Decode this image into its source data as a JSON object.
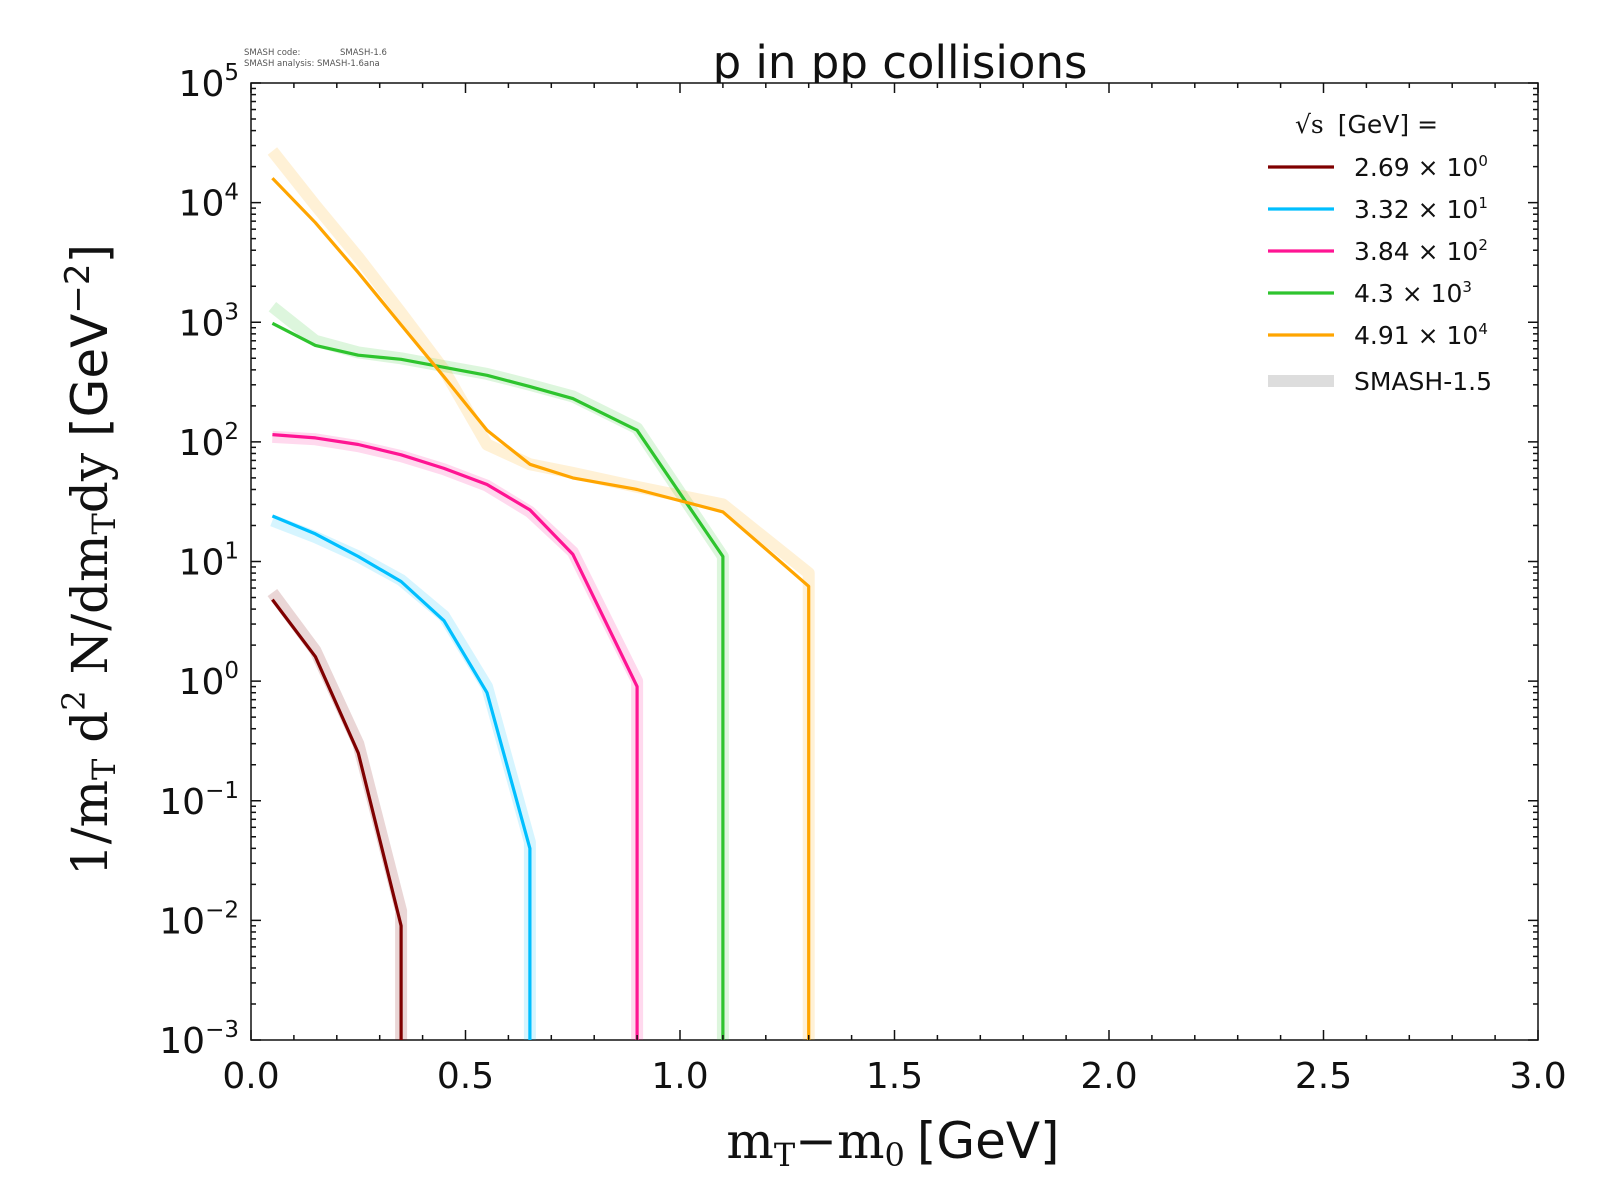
{
  "chart_data": {
    "type": "line",
    "title": "p in pp collisions",
    "smash_info": {
      "code_label": "SMASH code:",
      "code_value": "SMASH-1.6",
      "analysis_label": "SMASH analysis:",
      "analysis_value": "SMASH-1.6ana"
    },
    "xlabel": {
      "main": "m",
      "main_sub": "T",
      "minus": "−m",
      "minus_sub": "0",
      "unit": "[GeV]"
    },
    "ylabel": {
      "part1": "1/m",
      "part1_sub": "T",
      "part2": " d",
      "part2_sup": "2",
      "part3": " N/dm",
      "part3_sub": "T",
      "part4": "dy",
      "unit": "[GeV",
      "unit_sup": "−2",
      "unit_close": "]"
    },
    "xlim": [
      0.0,
      3.0
    ],
    "ylim": [
      0.001,
      100000
    ],
    "yscale": "log",
    "x_ticks": [
      "0.0",
      "0.5",
      "1.0",
      "1.5",
      "2.0",
      "2.5",
      "3.0"
    ],
    "y_ticks": [
      {
        "base": "10",
        "exp": "−3"
      },
      {
        "base": "10",
        "exp": "−2"
      },
      {
        "base": "10",
        "exp": "−1"
      },
      {
        "base": "10",
        "exp": "0"
      },
      {
        "base": "10",
        "exp": "1"
      },
      {
        "base": "10",
        "exp": "2"
      },
      {
        "base": "10",
        "exp": "3"
      },
      {
        "base": "10",
        "exp": "4"
      },
      {
        "base": "10",
        "exp": "5"
      }
    ],
    "legend": {
      "title_sqrt": "√s",
      "title_rest": "[GeV] =",
      "placement": "top-right",
      "reference_label": "SMASH-1.5",
      "reference_color": "#dddddd"
    },
    "series": [
      {
        "name": "2.69 × 10",
        "name_exp": "0",
        "color": "#7f0000",
        "x": [
          0.05,
          0.15,
          0.25,
          0.35,
          0.35
        ],
        "y": [
          4.8,
          1.6,
          0.25,
          0.009,
          0.001
        ],
        "ref_y": [
          5.5,
          1.8,
          0.3,
          0.012,
          0.001
        ]
      },
      {
        "name": "3.32 × 10",
        "name_exp": "1",
        "color": "#00bfff",
        "x": [
          0.05,
          0.15,
          0.25,
          0.35,
          0.45,
          0.55,
          0.65,
          0.65
        ],
        "y": [
          24,
          17,
          11,
          6.8,
          3.2,
          0.8,
          0.04,
          0.001
        ],
        "ref_y": [
          22,
          16,
          11,
          7.0,
          3.5,
          0.9,
          0.045,
          0.001
        ]
      },
      {
        "name": "3.84 × 10",
        "name_exp": "2",
        "color": "#ff1493",
        "x": [
          0.05,
          0.15,
          0.25,
          0.35,
          0.45,
          0.55,
          0.65,
          0.75,
          0.9,
          0.9
        ],
        "y": [
          115,
          108,
          95,
          78,
          60,
          44,
          27,
          11.5,
          0.9,
          0.001
        ],
        "ref_y": [
          110,
          105,
          92,
          76,
          59,
          43,
          26,
          12,
          1.0,
          0.001
        ]
      },
      {
        "name": "4.3 × 10",
        "name_exp": "3",
        "color": "#2ec42e",
        "x": [
          0.05,
          0.15,
          0.25,
          0.35,
          0.45,
          0.55,
          0.65,
          0.75,
          0.9,
          1.1,
          1.1
        ],
        "y": [
          980,
          640,
          530,
          490,
          420,
          360,
          290,
          230,
          125,
          11,
          0.001
        ],
        "ref_y": [
          1350,
          700,
          560,
          500,
          430,
          370,
          300,
          240,
          130,
          11,
          0.001
        ]
      },
      {
        "name": "4.91 × 10",
        "name_exp": "4",
        "color": "#ffa500",
        "x": [
          0.05,
          0.15,
          0.25,
          0.35,
          0.45,
          0.55,
          0.65,
          0.75,
          0.9,
          1.1,
          1.3,
          1.3
        ],
        "y": [
          16000,
          6800,
          2600,
          950,
          350,
          125,
          65,
          50,
          40,
          26,
          6.2,
          0.001
        ],
        "ref_y": [
          27000,
          9500,
          3500,
          1200,
          400,
          95,
          65,
          55,
          42,
          30,
          8,
          0.001
        ]
      }
    ]
  }
}
